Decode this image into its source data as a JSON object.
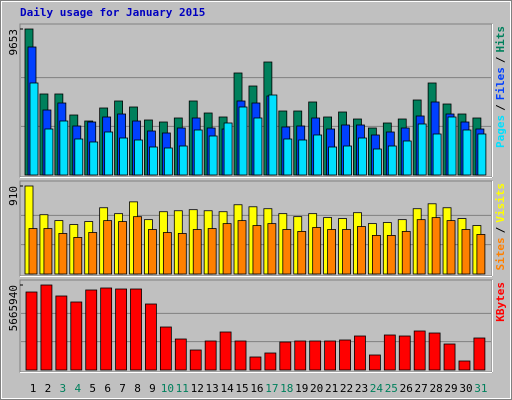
{
  "chart_data": [
    {
      "type": "bar",
      "title": "Daily usage for January 2015",
      "legend_separator": "/",
      "ylim": [
        0,
        9653
      ],
      "yticks": [
        9653
      ],
      "grid": true,
      "series": [
        {
          "name": "Hits",
          "color": "#00805c",
          "values": [
            9653,
            5356,
            5356,
            3967,
            3570,
            4430,
            4893,
            4496,
            3636,
            3504,
            3769,
            4893,
            4099,
            3835,
            6744,
            5884,
            7471,
            4231,
            4231,
            4827,
            3835,
            4165,
            3702,
            3107,
            3438,
            3702,
            4959,
            6083,
            4694,
            4033,
            3769
          ]
        },
        {
          "name": "Files",
          "color": "#0040ff",
          "values": [
            8463,
            4297,
            4760,
            3240,
            3504,
            3835,
            4033,
            3570,
            2909,
            2777,
            3107,
            3769,
            3107,
            3041,
            4893,
            4760,
            5223,
            3174,
            3240,
            3769,
            3041,
            3306,
            3306,
            2645,
            2843,
            3107,
            3901,
            4827,
            4033,
            3504,
            3041
          ]
        },
        {
          "name": "Pages",
          "color": "#00e0ff",
          "values": [
            6083,
            3041,
            3570,
            2380,
            2182,
            2843,
            2446,
            2314,
            1851,
            1785,
            1917,
            2975,
            2579,
            3438,
            4496,
            3769,
            5289,
            2380,
            2314,
            2645,
            1851,
            1917,
            2446,
            1719,
            1917,
            2248,
            3372,
            2711,
            3835,
            2975,
            2711
          ]
        }
      ]
    },
    {
      "type": "bar",
      "legend_separator": "/",
      "ylim": [
        0,
        910
      ],
      "yticks": [
        910
      ],
      "grid": true,
      "series": [
        {
          "name": "Visits",
          "color": "#ffff00",
          "values": [
            910,
            613,
            552,
            511,
            542,
            685,
            624,
            746,
            562,
            644,
            654,
            665,
            654,
            644,
            716,
            695,
            675,
            624,
            593,
            624,
            583,
            573,
            634,
            521,
            532,
            562,
            675,
            726,
            685,
            573,
            501
          ]
        },
        {
          "name": "Sites",
          "color": "#ff8000",
          "values": [
            470,
            470,
            419,
            378,
            429,
            552,
            542,
            593,
            460,
            429,
            419,
            460,
            470,
            521,
            552,
            501,
            521,
            460,
            440,
            481,
            460,
            460,
            491,
            399,
            399,
            440,
            562,
            583,
            552,
            460,
            409
          ]
        }
      ]
    },
    {
      "type": "bar",
      "ylim": [
        0,
        5665940
      ],
      "yticks": [
        5665940
      ],
      "grid": true,
      "categories": [
        "1",
        "2",
        "3",
        "4",
        "5",
        "6",
        "7",
        "8",
        "9",
        "10",
        "11",
        "12",
        "13",
        "14",
        "15",
        "16",
        "17",
        "18",
        "19",
        "20",
        "21",
        "22",
        "23",
        "24",
        "25",
        "26",
        "27",
        "28",
        "29",
        "30",
        "31"
      ],
      "category_colors": [
        "#000000",
        "#000000",
        "#00805c",
        "#00805c",
        "#000000",
        "#000000",
        "#000000",
        "#000000",
        "#000000",
        "#00805c",
        "#00805c",
        "#000000",
        "#000000",
        "#000000",
        "#000000",
        "#000000",
        "#00805c",
        "#00805c",
        "#000000",
        "#000000",
        "#000000",
        "#000000",
        "#000000",
        "#00805c",
        "#00805c",
        "#000000",
        "#000000",
        "#000000",
        "#000000",
        "#000000",
        "#00805c"
      ],
      "series": [
        {
          "name": "KBytes",
          "color": "#ff0000",
          "values": [
            5199000,
            5665940,
            4933000,
            4533000,
            5333000,
            5466000,
            5399000,
            5399000,
            4399000,
            2866000,
            2066000,
            1333000,
            1933000,
            2533000,
            1933000,
            867000,
            1133000,
            1866000,
            1933000,
            1933000,
            1933000,
            2000000,
            2266000,
            1000000,
            2333000,
            2266000,
            2600000,
            2466000,
            1733000,
            600000,
            2133000
          ]
        }
      ]
    }
  ]
}
